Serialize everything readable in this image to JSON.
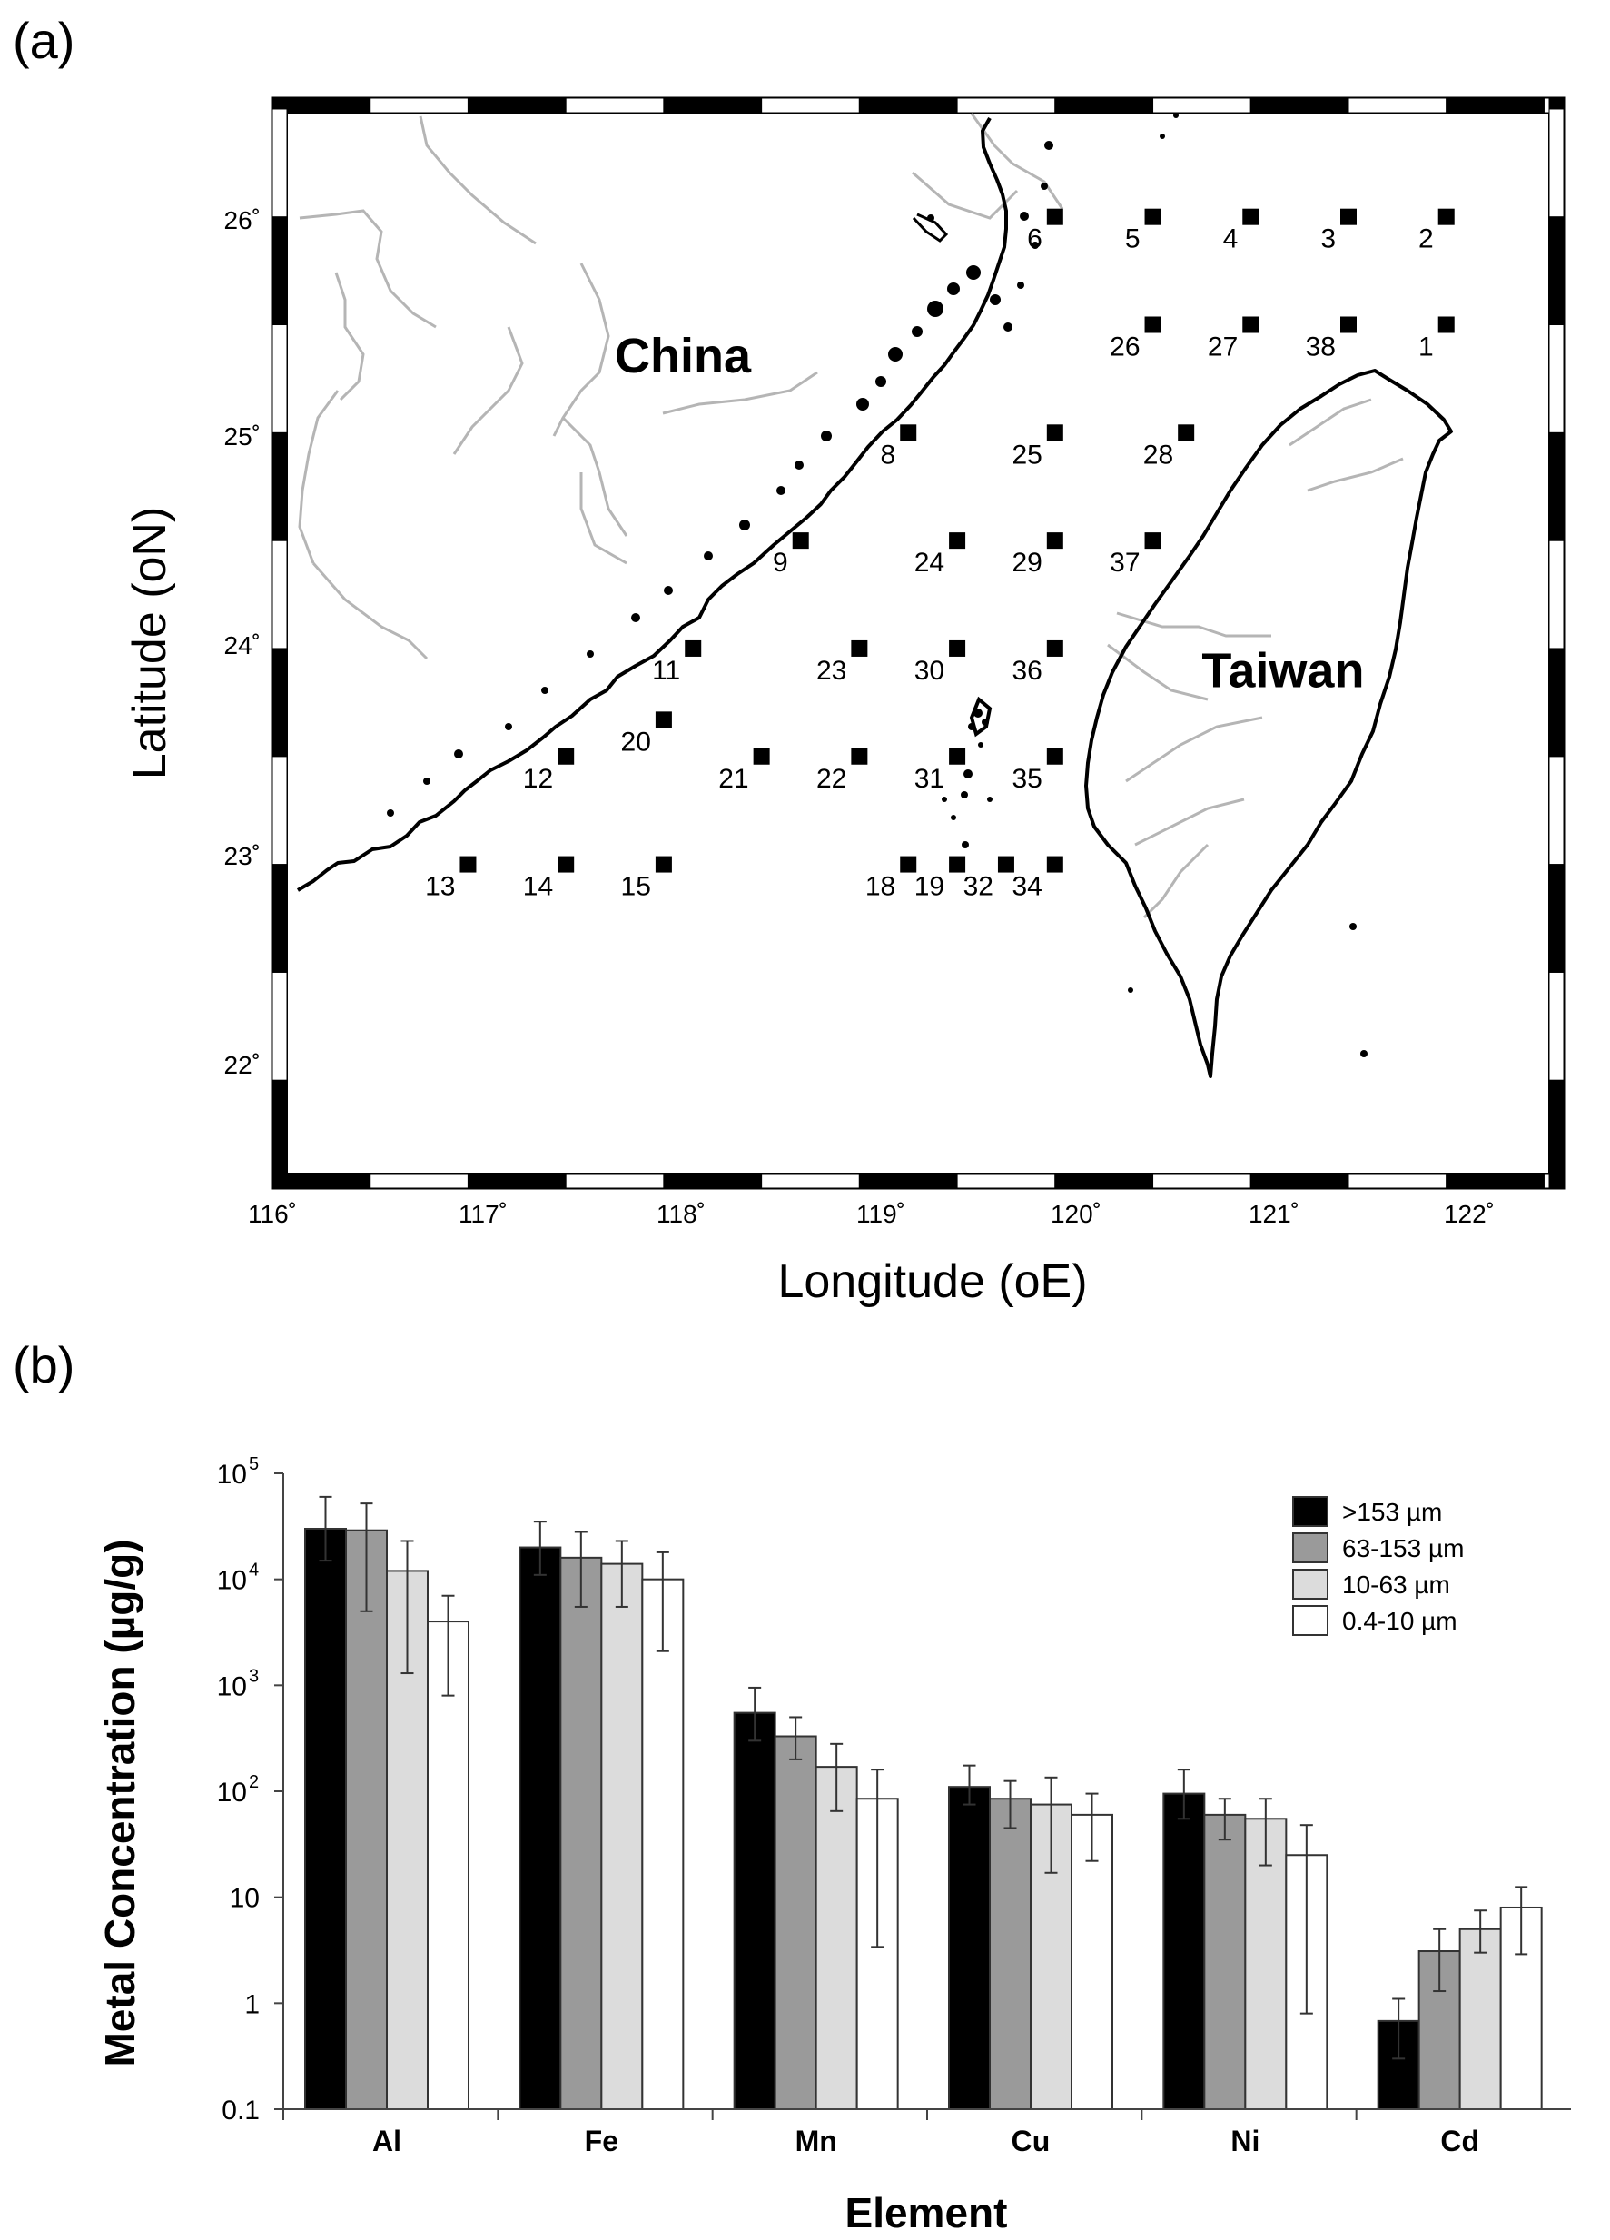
{
  "panels": {
    "a_label": "(a)",
    "b_label": "(b)"
  },
  "colors": {
    "black": "#000000",
    "dark_gray": "#9a9a9a",
    "light_gray": "#dcdcdc",
    "white": "#ffffff",
    "river": "#b5b5b5",
    "coast": "#000000"
  },
  "chart_data": [
    {
      "type": "scatter",
      "xlabel": "Longitude (oE)",
      "ylabel": "Latitude (oN)",
      "xlim": [
        116,
        122.6
      ],
      "ylim": [
        21.5,
        26.55
      ],
      "x_ticks": [
        "116˚",
        "117˚",
        "118˚",
        "119˚",
        "120˚",
        "121˚",
        "122˚"
      ],
      "y_ticks": [
        "22˚",
        "23˚",
        "24˚",
        "25˚",
        "26˚"
      ],
      "x_tick_values": [
        116,
        117,
        118,
        119,
        120,
        121,
        122
      ],
      "y_tick_values": [
        22,
        23,
        24,
        25,
        26
      ],
      "region_labels": [
        {
          "text": "China",
          "lon": 117.75,
          "lat": 25.28
        },
        {
          "text": "Taiwan",
          "lon": 120.75,
          "lat": 23.82
        }
      ],
      "stations": [
        {
          "id": "1",
          "lon": 122.0,
          "lat": 25.5
        },
        {
          "id": "2",
          "lon": 122.0,
          "lat": 26.0
        },
        {
          "id": "3",
          "lon": 121.5,
          "lat": 26.0
        },
        {
          "id": "4",
          "lon": 121.0,
          "lat": 26.0
        },
        {
          "id": "5",
          "lon": 120.5,
          "lat": 26.0
        },
        {
          "id": "6",
          "lon": 120.0,
          "lat": 26.0
        },
        {
          "id": "8",
          "lon": 119.25,
          "lat": 25.0
        },
        {
          "id": "9",
          "lon": 118.7,
          "lat": 24.5
        },
        {
          "id": "11",
          "lon": 118.15,
          "lat": 24.0
        },
        {
          "id": "12",
          "lon": 117.5,
          "lat": 23.5
        },
        {
          "id": "13",
          "lon": 117.0,
          "lat": 23.0
        },
        {
          "id": "14",
          "lon": 117.5,
          "lat": 23.0
        },
        {
          "id": "15",
          "lon": 118.0,
          "lat": 23.0
        },
        {
          "id": "18",
          "lon": 119.25,
          "lat": 23.0
        },
        {
          "id": "19",
          "lon": 119.5,
          "lat": 23.0
        },
        {
          "id": "20",
          "lon": 118.0,
          "lat": 23.67
        },
        {
          "id": "21",
          "lon": 118.5,
          "lat": 23.5
        },
        {
          "id": "22",
          "lon": 119.0,
          "lat": 23.5
        },
        {
          "id": "23",
          "lon": 119.0,
          "lat": 24.0
        },
        {
          "id": "24",
          "lon": 119.5,
          "lat": 24.5
        },
        {
          "id": "25",
          "lon": 120.0,
          "lat": 25.0
        },
        {
          "id": "26",
          "lon": 120.5,
          "lat": 25.5
        },
        {
          "id": "27",
          "lon": 121.0,
          "lat": 25.5
        },
        {
          "id": "28",
          "lon": 120.67,
          "lat": 25.0
        },
        {
          "id": "29",
          "lon": 120.0,
          "lat": 24.5
        },
        {
          "id": "30",
          "lon": 119.5,
          "lat": 24.0
        },
        {
          "id": "31",
          "lon": 119.5,
          "lat": 23.5
        },
        {
          "id": "32",
          "lon": 119.75,
          "lat": 23.0
        },
        {
          "id": "34",
          "lon": 120.0,
          "lat": 23.0
        },
        {
          "id": "35",
          "lon": 120.0,
          "lat": 23.5
        },
        {
          "id": "36",
          "lon": 120.0,
          "lat": 24.0
        },
        {
          "id": "37",
          "lon": 120.5,
          "lat": 24.5
        },
        {
          "id": "38",
          "lon": 121.5,
          "lat": 25.5
        }
      ]
    },
    {
      "type": "bar",
      "xlabel": "Element",
      "ylabel": "Metal Concentration (µg/g)",
      "yscale": "log",
      "ylim": [
        0.1,
        100000
      ],
      "y_ticks": [
        "0.1",
        "1",
        "10",
        "10",
        "10",
        "10",
        "10"
      ],
      "y_tick_exponents": [
        "",
        "",
        "",
        "2",
        "3",
        "4",
        "5"
      ],
      "y_tick_values": [
        0.1,
        1,
        10,
        100,
        1000,
        10000,
        100000
      ],
      "categories": [
        "Al",
        "Fe",
        "Mn",
        "Cu",
        "Ni",
        "Cd"
      ],
      "legend_position": "top-right",
      "series": [
        {
          "name": ">153 µm",
          "color": "#000000",
          "values": [
            30000,
            20000,
            550,
            110,
            95,
            0.68
          ],
          "err_high": [
            60000,
            35000,
            950,
            175,
            160,
            1.1
          ],
          "err_low": [
            15000,
            11000,
            300,
            75,
            55,
            0.3
          ]
        },
        {
          "name": "63-153 µm",
          "color": "#9a9a9a",
          "values": [
            29000,
            16000,
            330,
            85,
            60,
            3.1
          ],
          "err_high": [
            52000,
            28000,
            500,
            125,
            85,
            5.0
          ],
          "err_low": [
            5000,
            5500,
            200,
            45,
            35,
            1.3
          ]
        },
        {
          "name": "10-63 µm",
          "color": "#dcdcdc",
          "values": [
            12000,
            14000,
            170,
            75,
            55,
            5.0
          ],
          "err_high": [
            23000,
            23000,
            280,
            135,
            85,
            7.5
          ],
          "err_low": [
            1300,
            5500,
            65,
            17,
            20,
            3.0
          ]
        },
        {
          "name": "0.4-10 µm",
          "color": "#ffffff",
          "values": [
            4000,
            10000,
            85,
            60,
            25,
            8.0
          ],
          "err_high": [
            7000,
            18000,
            160,
            95,
            48,
            12.5
          ],
          "err_low": [
            800,
            2100,
            3.4,
            22,
            0.8,
            2.9
          ]
        }
      ]
    }
  ]
}
